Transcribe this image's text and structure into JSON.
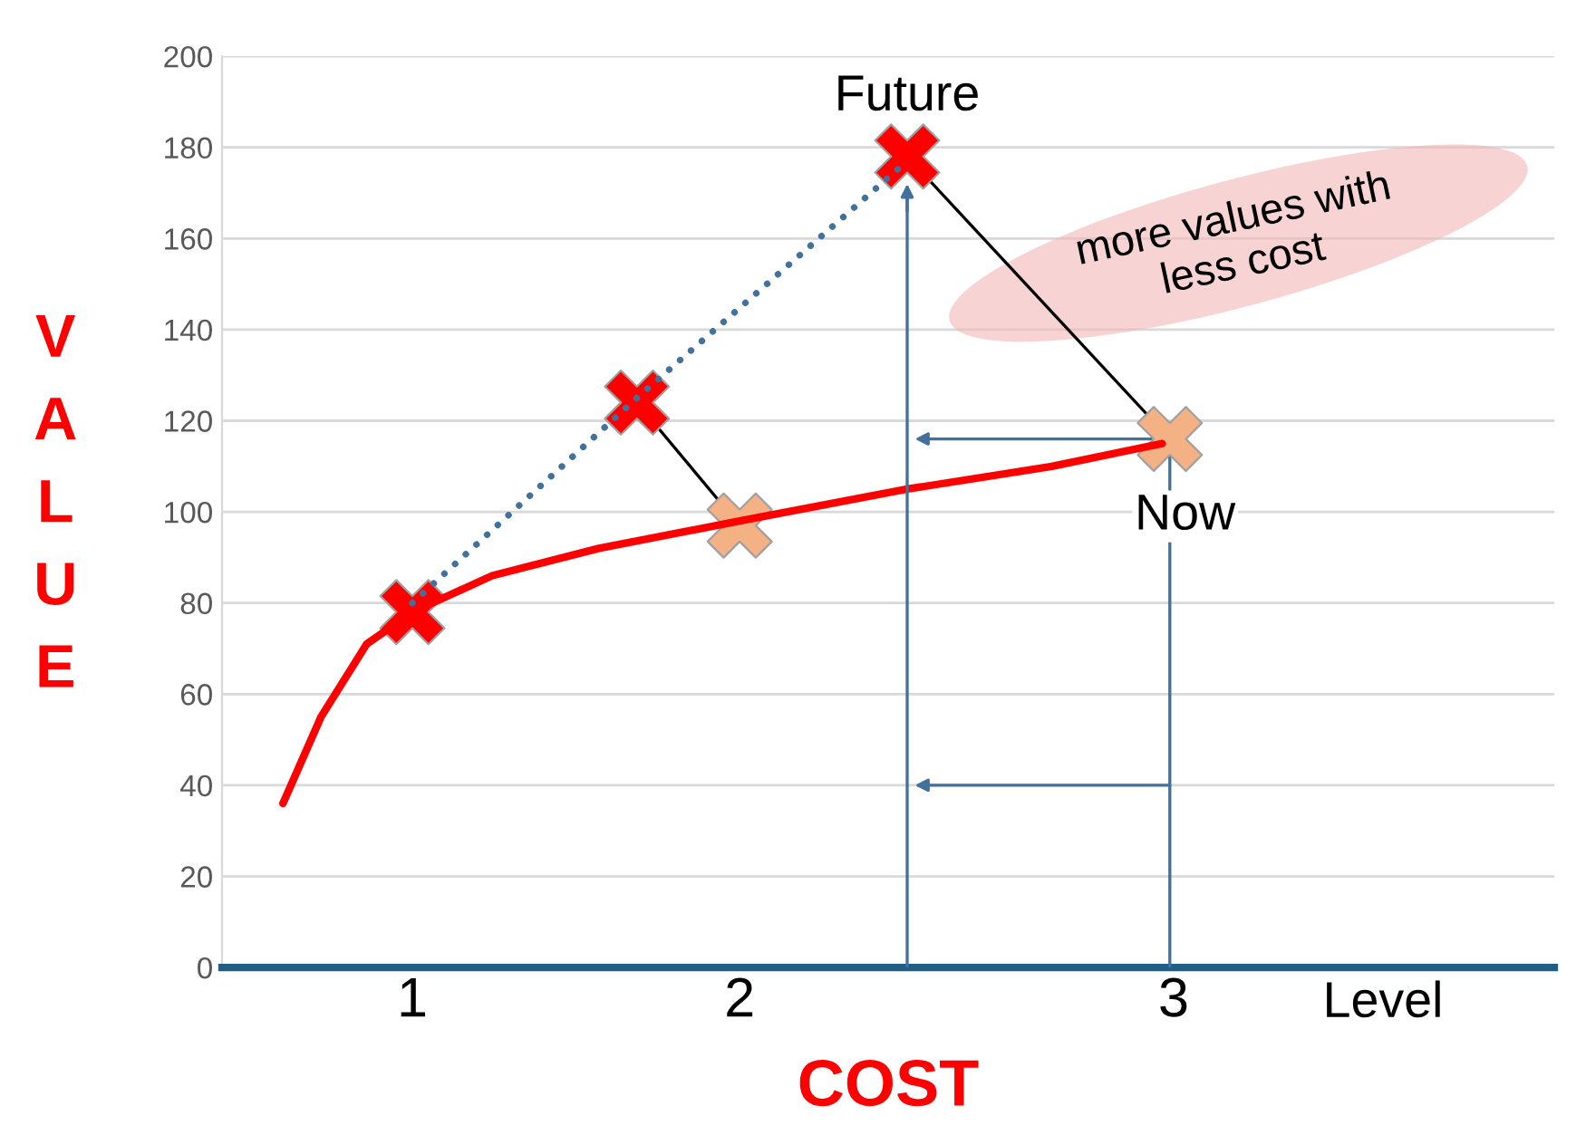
{
  "chart_data": {
    "type": "line",
    "ylabel": "VALUE",
    "xlabel": "COST",
    "annotations": [
      "Level",
      {
        "text": "Future",
        "x": 2.3,
        "y": 178
      },
      {
        "text": "Now",
        "x": 2.99,
        "y": 116
      },
      "more values with less cost"
    ],
    "xlim": [
      0.5,
      4.0
    ],
    "xticks": [
      {
        "value": 1,
        "label": "1"
      },
      {
        "value": 1.86,
        "label": "2"
      },
      {
        "value": 3,
        "label": "3"
      }
    ],
    "ylim": [
      0,
      200
    ],
    "yticks": [
      0,
      20,
      40,
      60,
      80,
      100,
      120,
      140,
      160,
      180,
      200
    ],
    "grid": "y",
    "legend": false,
    "series": [
      {
        "color": "#ff0000",
        "x": [
          0.66,
          0.76,
          0.88,
          1.0,
          1.21,
          1.49,
          1.86,
          2.3,
          2.68,
          2.97
        ],
        "values": [
          36,
          55,
          71,
          78,
          86,
          92,
          98,
          105,
          110,
          115
        ]
      },
      {
        "color": "#41719c",
        "line_style": "dotted",
        "x": [
          1.0,
          1.59,
          2.3
        ],
        "values": [
          80,
          125,
          177
        ]
      },
      {
        "color": "#41719c",
        "x": [
          2.3,
          2.3
        ],
        "values": [
          0,
          170
        ]
      },
      {
        "type": "scatter",
        "color": "#f4b183",
        "marker": "cross",
        "x": [
          1.86,
          2.99
        ],
        "values": [
          97,
          116
        ]
      },
      {
        "type": "scatter",
        "color": "#ff0000",
        "marker": "cross",
        "x": [
          1.0,
          1.59,
          2.3
        ],
        "values": [
          78,
          124,
          178
        ]
      }
    ]
  }
}
